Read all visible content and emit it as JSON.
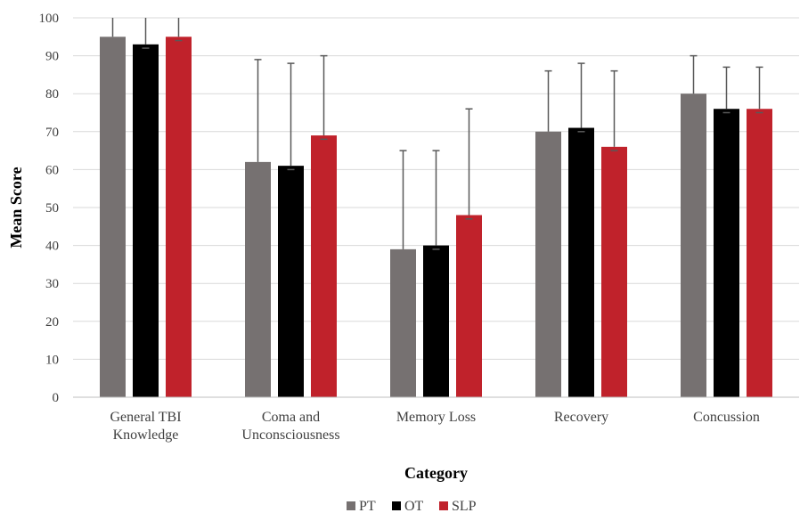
{
  "chart_data": {
    "type": "bar",
    "title": "",
    "xlabel": "Category",
    "ylabel": "Mean Score",
    "ylim": [
      0,
      100
    ],
    "yticks": [
      0,
      10,
      20,
      30,
      40,
      50,
      60,
      70,
      80,
      90,
      100
    ],
    "grid": "horizontal",
    "legend_position": "bottom",
    "categories": [
      [
        "General TBI",
        "Knowledge"
      ],
      [
        "Coma and",
        "Unconsciousness"
      ],
      [
        "Memory Loss"
      ],
      [
        "Recovery"
      ],
      [
        "Concussion"
      ]
    ],
    "series": [
      {
        "name": "PT",
        "color": "#767171",
        "values": [
          95,
          62,
          39,
          70,
          80
        ],
        "error_upper": [
          100,
          89,
          65,
          86,
          90
        ],
        "error_lower": [
          null,
          null,
          null,
          null,
          null
        ]
      },
      {
        "name": "OT",
        "color": "#000000",
        "values": [
          93,
          61,
          40,
          71,
          76
        ],
        "error_upper": [
          100,
          88,
          65,
          88,
          87
        ],
        "error_lower": [
          92,
          60,
          39,
          70,
          75
        ]
      },
      {
        "name": "SLP",
        "color": "#c0222b",
        "values": [
          95,
          69,
          48,
          66,
          76
        ],
        "error_upper": [
          100,
          90,
          76,
          86,
          87
        ],
        "error_lower": [
          94,
          68,
          47,
          65,
          75
        ]
      }
    ]
  }
}
